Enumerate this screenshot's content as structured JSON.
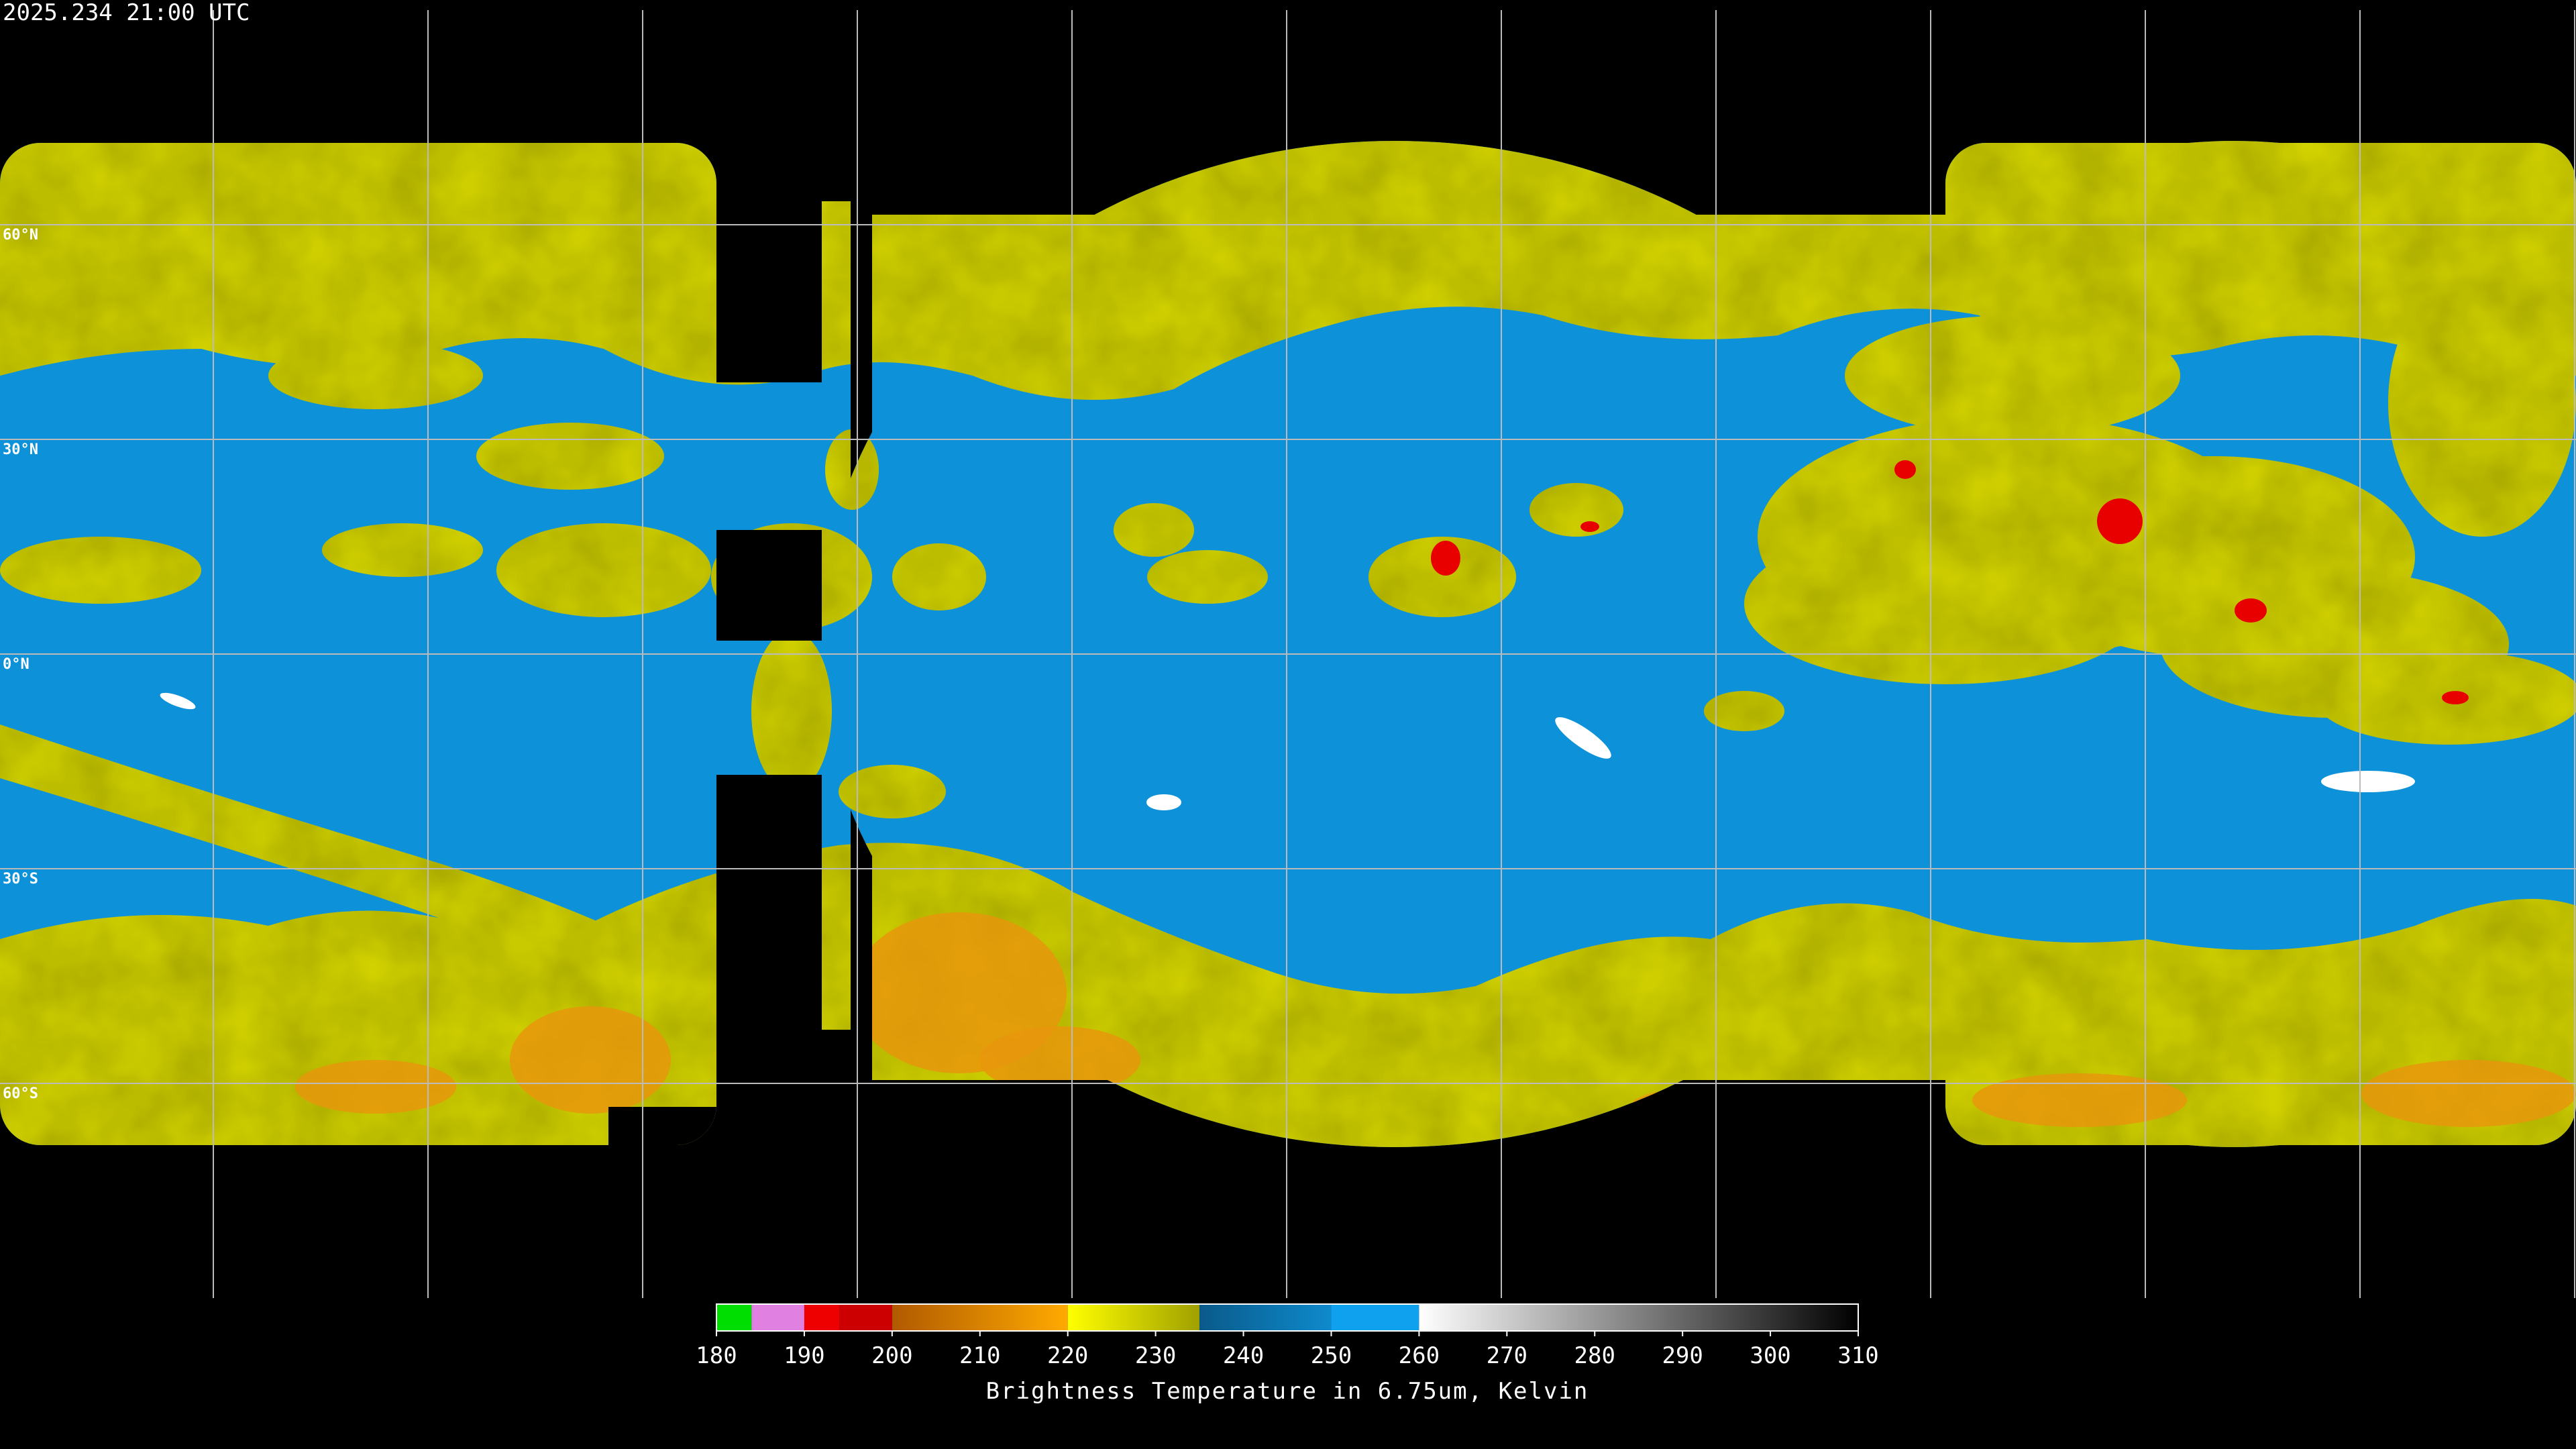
{
  "header": {
    "timestamp": "2025.234 21:00 UTC"
  },
  "map": {
    "lat_lines": [
      {
        "value": 60,
        "label": "60°N"
      },
      {
        "value": 30,
        "label": "30°N"
      },
      {
        "value": 0,
        "label": "0°N"
      },
      {
        "value": -30,
        "label": "30°S"
      },
      {
        "value": -60,
        "label": "60°S"
      }
    ]
  },
  "colorbar": {
    "lim": [
      180,
      310
    ],
    "ticks": [
      180,
      190,
      200,
      210,
      220,
      230,
      240,
      250,
      260,
      270,
      280,
      290,
      300,
      310
    ],
    "segments": [
      {
        "from": 180,
        "to": 184,
        "colors": [
          "#00dd00",
          "#00dd00"
        ]
      },
      {
        "from": 184,
        "to": 190,
        "colors": [
          "#e080e0",
          "#e080e0"
        ]
      },
      {
        "from": 190,
        "to": 194,
        "colors": [
          "#ee0000",
          "#ee0000"
        ]
      },
      {
        "from": 194,
        "to": 200,
        "colors": [
          "#cc0000",
          "#cc0000"
        ]
      },
      {
        "from": 200,
        "to": 220,
        "colors": [
          "#b05a00",
          "#ffaa00"
        ]
      },
      {
        "from": 220,
        "to": 235,
        "colors": [
          "#ffff00",
          "#a0a000"
        ]
      },
      {
        "from": 235,
        "to": 250,
        "colors": [
          "#0a5a8a",
          "#0e8acc"
        ]
      },
      {
        "from": 250,
        "to": 260,
        "colors": [
          "#0fa0ee",
          "#0fa0ee"
        ]
      },
      {
        "from": 260,
        "to": 310,
        "colors": [
          "#ffffff",
          "#000000"
        ]
      }
    ],
    "caption": "Brightness Temperature in 6.75um, Kelvin"
  }
}
